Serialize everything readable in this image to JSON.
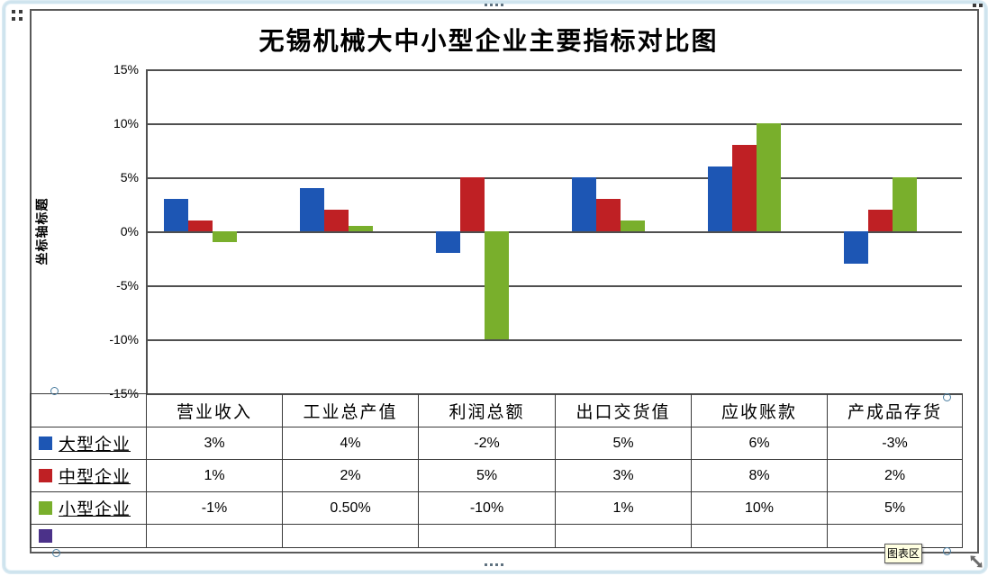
{
  "window": {
    "tooltip_label": "图表区"
  },
  "colors": {
    "series_blue": "#1d56b4",
    "series_red": "#bf2024",
    "series_green": "#79af2c",
    "extra_swatch_purple": "#4b3189",
    "gridline": "#4f4f4f",
    "table_border": "#3a3a3a",
    "frame_blue": "#cfe4ee",
    "tooltip_bg": "#ffffe1"
  },
  "chart_data": {
    "type": "bar",
    "title": "无锡机械大中小型企业主要指标对比图",
    "ylabel": "坐标轴标题",
    "xlabel": "",
    "categories": [
      "营业收入",
      "工业总产值",
      "利润总额",
      "出口交货值",
      "应收账款",
      "产成品存货"
    ],
    "series": [
      {
        "name": "大型企业",
        "color": "#1d56b4",
        "values": [
          3,
          4,
          -2,
          5,
          6,
          -3
        ],
        "labels": [
          "3%",
          "4%",
          "-2%",
          "5%",
          "6%",
          "-3%"
        ]
      },
      {
        "name": "中型企业",
        "color": "#bf2024",
        "values": [
          1,
          2,
          5,
          3,
          8,
          2
        ],
        "labels": [
          "1%",
          "2%",
          "5%",
          "3%",
          "8%",
          "2%"
        ]
      },
      {
        "name": "小型企业",
        "color": "#79af2c",
        "values": [
          -1,
          0.5,
          -10,
          1,
          10,
          5
        ],
        "labels": [
          "-1%",
          "0.50%",
          "-10%",
          "1%",
          "10%",
          "5%"
        ]
      }
    ],
    "extra_legend_row": {
      "label": "",
      "color": "#4b3189"
    },
    "ylim": [
      -15,
      15
    ],
    "ytick_step": 5,
    "yticks": [
      "15%",
      "10%",
      "5%",
      "0%",
      "-5%",
      "-10%",
      "-15%"
    ],
    "unit": "percent",
    "grid": true,
    "legend_position": "table-left-column"
  }
}
